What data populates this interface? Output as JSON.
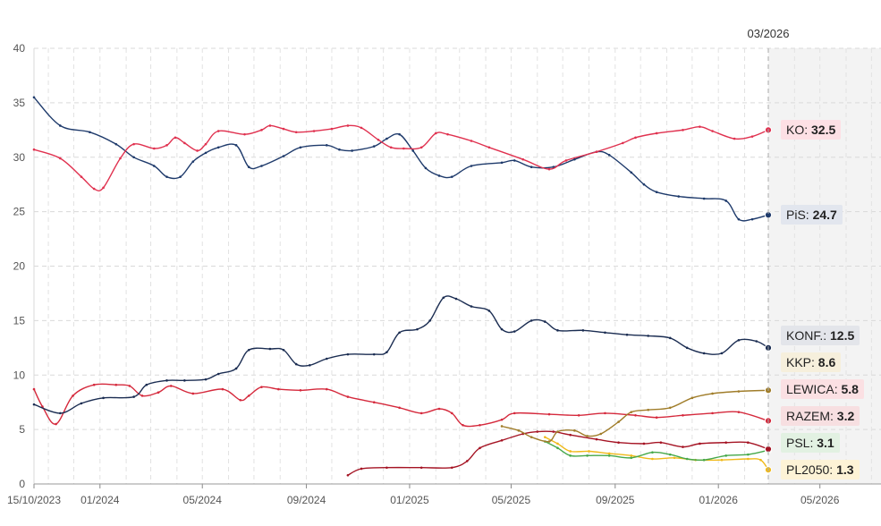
{
  "chart_data": {
    "type": "line",
    "title": "",
    "xlabel": "",
    "ylabel": "",
    "ylim": [
      0,
      40
    ],
    "yticks": [
      0,
      5,
      10,
      15,
      20,
      25,
      30,
      35,
      40
    ],
    "xlim": [
      "2023-10-15",
      "2026-07-01"
    ],
    "xticks": [
      {
        "date": "2023-10-15",
        "label": "15/10/2023"
      },
      {
        "date": "2024-01-01",
        "label": "01/2024"
      },
      {
        "date": "2024-05-01",
        "label": "05/2024"
      },
      {
        "date": "2024-09-01",
        "label": "09/2024"
      },
      {
        "date": "2025-01-01",
        "label": "01/2025"
      },
      {
        "date": "2025-05-01",
        "label": "05/2025"
      },
      {
        "date": "2025-09-01",
        "label": "09/2025"
      },
      {
        "date": "2026-01-01",
        "label": "01/2026"
      },
      {
        "date": "2026-05-01",
        "label": "05/2026"
      }
    ],
    "grid": true,
    "cursor": {
      "date": "2026-03-01",
      "label": "03/2026"
    },
    "legend": "right",
    "series": [
      {
        "name": "KO",
        "display_value": "32.5",
        "color": "#e0314f",
        "label_bg": "#fde0e5",
        "points": [
          [
            "2023-10-15",
            30.7
          ],
          [
            "2023-11-15",
            29.9
          ],
          [
            "2023-12-10",
            28.2
          ],
          [
            "2023-12-25",
            27.1
          ],
          [
            "2024-01-05",
            27.2
          ],
          [
            "2024-01-25",
            29.9
          ],
          [
            "2024-02-10",
            31.2
          ],
          [
            "2024-03-05",
            30.8
          ],
          [
            "2024-03-20",
            31.1
          ],
          [
            "2024-03-30",
            31.8
          ],
          [
            "2024-04-10",
            31.3
          ],
          [
            "2024-04-25",
            30.6
          ],
          [
            "2024-05-05",
            31.2
          ],
          [
            "2024-05-20",
            32.4
          ],
          [
            "2024-06-20",
            32.1
          ],
          [
            "2024-07-10",
            32.5
          ],
          [
            "2024-07-20",
            32.9
          ],
          [
            "2024-08-05",
            32.6
          ],
          [
            "2024-08-20",
            32.3
          ],
          [
            "2024-09-10",
            32.4
          ],
          [
            "2024-10-01",
            32.6
          ],
          [
            "2024-10-20",
            32.9
          ],
          [
            "2024-11-05",
            32.7
          ],
          [
            "2024-11-25",
            31.6
          ],
          [
            "2024-12-10",
            30.9
          ],
          [
            "2024-12-25",
            30.8
          ],
          [
            "2025-01-15",
            30.9
          ],
          [
            "2025-02-01",
            32.2
          ],
          [
            "2025-02-15",
            32.1
          ],
          [
            "2025-03-15",
            31.5
          ],
          [
            "2025-04-05",
            30.9
          ],
          [
            "2025-05-15",
            29.8
          ],
          [
            "2025-06-15",
            28.9
          ],
          [
            "2025-07-05",
            29.7
          ],
          [
            "2025-08-10",
            30.5
          ],
          [
            "2025-09-10",
            31.3
          ],
          [
            "2025-09-25",
            31.8
          ],
          [
            "2025-10-20",
            32.2
          ],
          [
            "2025-11-20",
            32.5
          ],
          [
            "2025-12-10",
            32.8
          ],
          [
            "2025-12-25",
            32.4
          ],
          [
            "2026-01-20",
            31.7
          ],
          [
            "2026-02-10",
            31.9
          ],
          [
            "2026-03-01",
            32.5
          ]
        ]
      },
      {
        "name": "PiS",
        "display_value": "24.7",
        "color": "#1e3a6b",
        "label_bg": "#e2e6ee",
        "points": [
          [
            "2023-10-15",
            35.5
          ],
          [
            "2023-11-15",
            32.9
          ],
          [
            "2023-12-20",
            32.3
          ],
          [
            "2024-01-20",
            31.2
          ],
          [
            "2024-02-10",
            30.0
          ],
          [
            "2024-03-05",
            29.2
          ],
          [
            "2024-03-20",
            28.2
          ],
          [
            "2024-04-05",
            28.2
          ],
          [
            "2024-04-20",
            29.6
          ],
          [
            "2024-05-05",
            30.4
          ],
          [
            "2024-05-20",
            30.9
          ],
          [
            "2024-06-10",
            31.1
          ],
          [
            "2024-06-25",
            29.1
          ],
          [
            "2024-07-10",
            29.2
          ],
          [
            "2024-08-05",
            30.1
          ],
          [
            "2024-08-25",
            30.9
          ],
          [
            "2024-09-25",
            31.1
          ],
          [
            "2024-10-10",
            30.7
          ],
          [
            "2024-10-25",
            30.6
          ],
          [
            "2024-11-20",
            31.0
          ],
          [
            "2024-12-05",
            31.7
          ],
          [
            "2024-12-20",
            32.1
          ],
          [
            "2025-01-05",
            30.6
          ],
          [
            "2025-01-20",
            29.0
          ],
          [
            "2025-02-05",
            28.3
          ],
          [
            "2025-02-20",
            28.2
          ],
          [
            "2025-03-15",
            29.2
          ],
          [
            "2025-04-20",
            29.5
          ],
          [
            "2025-05-05",
            29.7
          ],
          [
            "2025-05-25",
            29.1
          ],
          [
            "2025-06-20",
            29.1
          ],
          [
            "2025-07-15",
            29.8
          ],
          [
            "2025-08-10",
            30.5
          ],
          [
            "2025-08-25",
            30.2
          ],
          [
            "2025-09-20",
            28.6
          ],
          [
            "2025-10-05",
            27.5
          ],
          [
            "2025-10-20",
            26.8
          ],
          [
            "2025-11-15",
            26.4
          ],
          [
            "2025-12-15",
            26.2
          ],
          [
            "2026-01-10",
            26.0
          ],
          [
            "2026-01-25",
            24.3
          ],
          [
            "2026-02-10",
            24.3
          ],
          [
            "2026-03-01",
            24.7
          ]
        ]
      },
      {
        "name": "KONF.",
        "display_value": "12.5",
        "color": "#1b2d52",
        "label_bg": "#e3e5ea",
        "points": [
          [
            "2023-10-15",
            7.3
          ],
          [
            "2023-11-15",
            6.5
          ],
          [
            "2023-12-10",
            7.4
          ],
          [
            "2024-01-05",
            7.9
          ],
          [
            "2024-02-10",
            8.0
          ],
          [
            "2024-02-25",
            9.1
          ],
          [
            "2024-03-20",
            9.5
          ],
          [
            "2024-04-10",
            9.5
          ],
          [
            "2024-05-05",
            9.6
          ],
          [
            "2024-05-20",
            10.1
          ],
          [
            "2024-06-10",
            10.6
          ],
          [
            "2024-06-25",
            12.3
          ],
          [
            "2024-07-20",
            12.4
          ],
          [
            "2024-08-05",
            12.3
          ],
          [
            "2024-08-20",
            11.0
          ],
          [
            "2024-09-05",
            10.9
          ],
          [
            "2024-09-25",
            11.5
          ],
          [
            "2024-10-20",
            11.9
          ],
          [
            "2024-11-20",
            11.9
          ],
          [
            "2024-12-05",
            12.1
          ],
          [
            "2024-12-20",
            13.9
          ],
          [
            "2025-01-10",
            14.2
          ],
          [
            "2025-01-25",
            15.0
          ],
          [
            "2025-02-10",
            17.1
          ],
          [
            "2025-02-25",
            17.0
          ],
          [
            "2025-03-15",
            16.3
          ],
          [
            "2025-04-05",
            15.9
          ],
          [
            "2025-04-20",
            14.2
          ],
          [
            "2025-05-05",
            14.0
          ],
          [
            "2025-05-25",
            15.0
          ],
          [
            "2025-06-10",
            14.9
          ],
          [
            "2025-06-25",
            14.1
          ],
          [
            "2025-07-25",
            14.1
          ],
          [
            "2025-08-20",
            13.9
          ],
          [
            "2025-09-15",
            13.7
          ],
          [
            "2025-10-10",
            13.6
          ],
          [
            "2025-11-05",
            13.4
          ],
          [
            "2025-11-25",
            12.5
          ],
          [
            "2025-12-15",
            12.0
          ],
          [
            "2026-01-05",
            12.0
          ],
          [
            "2026-01-25",
            13.2
          ],
          [
            "2026-02-15",
            13.1
          ],
          [
            "2026-03-01",
            12.5
          ]
        ]
      },
      {
        "name": "KKP",
        "display_value": "8.6",
        "color": "#a07d2a",
        "label_bg": "#f6efdc",
        "points": [
          [
            "2025-04-20",
            5.3
          ],
          [
            "2025-05-10",
            4.9
          ],
          [
            "2025-05-25",
            4.3
          ],
          [
            "2025-06-15",
            3.9
          ],
          [
            "2025-06-25",
            4.8
          ],
          [
            "2025-07-15",
            4.9
          ],
          [
            "2025-07-30",
            4.4
          ],
          [
            "2025-08-15",
            4.6
          ],
          [
            "2025-09-05",
            5.7
          ],
          [
            "2025-09-20",
            6.6
          ],
          [
            "2025-10-10",
            6.8
          ],
          [
            "2025-11-05",
            7.0
          ],
          [
            "2025-12-01",
            7.9
          ],
          [
            "2025-12-25",
            8.3
          ],
          [
            "2026-01-25",
            8.5
          ],
          [
            "2026-03-01",
            8.6
          ]
        ]
      },
      {
        "name": "LEWICA",
        "display_value": "5.8",
        "color": "#d5293c",
        "label_bg": "#fbe0e3",
        "points": [
          [
            "2023-10-15",
            8.7
          ],
          [
            "2023-10-25",
            7.1
          ],
          [
            "2023-11-10",
            5.5
          ],
          [
            "2023-11-30",
            8.1
          ],
          [
            "2023-12-25",
            9.1
          ],
          [
            "2024-01-20",
            9.1
          ],
          [
            "2024-02-05",
            9.0
          ],
          [
            "2024-02-20",
            8.1
          ],
          [
            "2024-03-10",
            8.4
          ],
          [
            "2024-03-25",
            9.0
          ],
          [
            "2024-04-20",
            8.3
          ],
          [
            "2024-05-25",
            8.7
          ],
          [
            "2024-06-15",
            7.7
          ],
          [
            "2024-06-25",
            8.1
          ],
          [
            "2024-07-10",
            8.9
          ],
          [
            "2024-07-30",
            8.7
          ],
          [
            "2024-08-25",
            8.6
          ],
          [
            "2024-09-25",
            8.7
          ],
          [
            "2024-10-20",
            8.0
          ],
          [
            "2024-11-20",
            7.5
          ],
          [
            "2024-12-20",
            7.0
          ],
          [
            "2025-01-15",
            6.5
          ],
          [
            "2025-02-05",
            6.9
          ],
          [
            "2025-02-20",
            6.5
          ],
          [
            "2025-03-05",
            5.4
          ],
          [
            "2025-03-25",
            5.4
          ],
          [
            "2025-04-20",
            5.9
          ],
          [
            "2025-05-05",
            6.5
          ],
          [
            "2025-06-15",
            6.4
          ],
          [
            "2025-07-20",
            6.3
          ],
          [
            "2025-08-20",
            6.5
          ],
          [
            "2025-09-25",
            6.3
          ],
          [
            "2025-10-20",
            6.1
          ],
          [
            "2025-11-20",
            6.3
          ],
          [
            "2025-12-25",
            6.5
          ],
          [
            "2026-01-25",
            6.6
          ],
          [
            "2026-03-01",
            5.8
          ]
        ]
      },
      {
        "name": "RAZEM",
        "display_value": "3.2",
        "color": "#a51424",
        "label_bg": "#f7dfe1",
        "points": [
          [
            "2024-10-20",
            0.8
          ],
          [
            "2024-11-05",
            1.4
          ],
          [
            "2024-12-05",
            1.5
          ],
          [
            "2025-01-15",
            1.5
          ],
          [
            "2025-02-20",
            1.5
          ],
          [
            "2025-03-10",
            2.1
          ],
          [
            "2025-03-25",
            3.3
          ],
          [
            "2025-04-20",
            4.0
          ],
          [
            "2025-05-15",
            4.6
          ],
          [
            "2025-06-01",
            4.8
          ],
          [
            "2025-06-20",
            4.8
          ],
          [
            "2025-07-10",
            4.5
          ],
          [
            "2025-08-10",
            4.1
          ],
          [
            "2025-09-05",
            3.8
          ],
          [
            "2025-10-05",
            3.7
          ],
          [
            "2025-10-25",
            3.8
          ],
          [
            "2025-11-20",
            3.4
          ],
          [
            "2025-12-10",
            3.7
          ],
          [
            "2026-01-10",
            3.8
          ],
          [
            "2026-02-05",
            3.8
          ],
          [
            "2026-03-01",
            3.2
          ]
        ]
      },
      {
        "name": "PSL",
        "display_value": "3.1",
        "color": "#46a84a",
        "label_bg": "#e2f1e2",
        "points": [
          [
            "2025-06-10",
            3.9
          ],
          [
            "2025-06-25",
            3.3
          ],
          [
            "2025-07-10",
            2.6
          ],
          [
            "2025-07-30",
            2.6
          ],
          [
            "2025-08-25",
            2.6
          ],
          [
            "2025-09-20",
            2.4
          ],
          [
            "2025-10-15",
            2.9
          ],
          [
            "2025-11-05",
            2.7
          ],
          [
            "2025-11-25",
            2.3
          ],
          [
            "2025-12-15",
            2.2
          ],
          [
            "2026-01-10",
            2.6
          ],
          [
            "2026-02-05",
            2.7
          ],
          [
            "2026-03-01",
            3.1
          ]
        ]
      },
      {
        "name": "PL2050",
        "display_value": "1.3",
        "color": "#f0b91a",
        "label_bg": "#fdf3d6",
        "points": [
          [
            "2025-06-10",
            4.3
          ],
          [
            "2025-06-25",
            3.7
          ],
          [
            "2025-07-10",
            3.0
          ],
          [
            "2025-08-01",
            3.0
          ],
          [
            "2025-08-25",
            2.8
          ],
          [
            "2025-09-20",
            2.6
          ],
          [
            "2025-10-15",
            2.3
          ],
          [
            "2025-11-10",
            2.4
          ],
          [
            "2025-12-05",
            2.2
          ],
          [
            "2026-01-05",
            2.2
          ],
          [
            "2026-02-05",
            2.3
          ],
          [
            "2026-02-20",
            2.2
          ],
          [
            "2026-03-01",
            1.3
          ]
        ]
      }
    ]
  }
}
